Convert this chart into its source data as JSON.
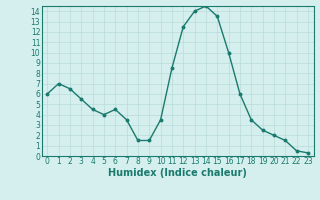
{
  "xlabel": "Humidex (Indice chaleur)",
  "x": [
    0,
    1,
    2,
    3,
    4,
    5,
    6,
    7,
    8,
    9,
    10,
    11,
    12,
    13,
    14,
    15,
    16,
    17,
    18,
    19,
    20,
    21,
    22,
    23
  ],
  "y": [
    6,
    7,
    6.5,
    5.5,
    4.5,
    4,
    4.5,
    3.5,
    1.5,
    1.5,
    3.5,
    8.5,
    12.5,
    14,
    14.5,
    13.5,
    10,
    6,
    3.5,
    2.5,
    2,
    1.5,
    0.5,
    0.3
  ],
  "line_color": "#1a7a6e",
  "marker": "o",
  "marker_size": 1.8,
  "bg_color": "#d4efed",
  "grid_color": "#b8dbd9",
  "ylim": [
    0,
    14.5
  ],
  "xlim": [
    -0.5,
    23.5
  ],
  "yticks": [
    0,
    1,
    2,
    3,
    4,
    5,
    6,
    7,
    8,
    9,
    10,
    11,
    12,
    13,
    14
  ],
  "xticks": [
    0,
    1,
    2,
    3,
    4,
    5,
    6,
    7,
    8,
    9,
    10,
    11,
    12,
    13,
    14,
    15,
    16,
    17,
    18,
    19,
    20,
    21,
    22,
    23
  ],
  "tick_color": "#1a7a6e",
  "label_color": "#1a7a6e",
  "tick_fontsize": 5.5,
  "xlabel_fontsize": 7.0,
  "line_width": 1.0
}
